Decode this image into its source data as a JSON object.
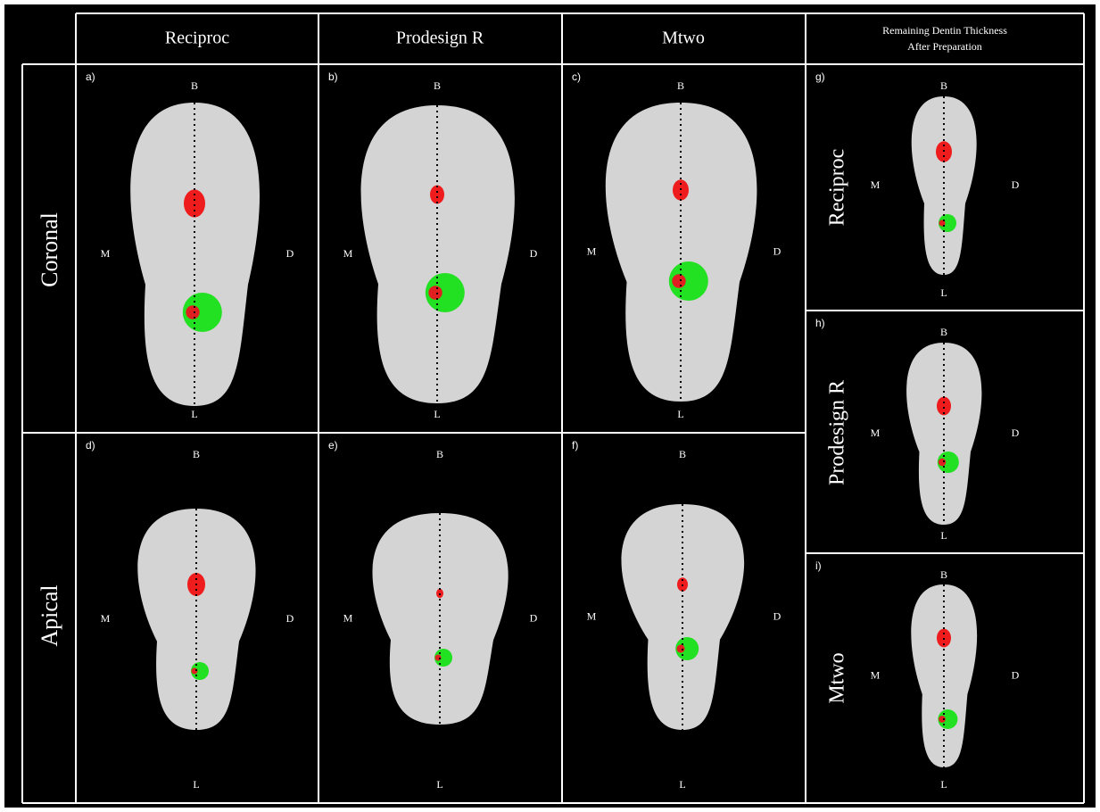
{
  "headers": [
    "Reciproc",
    "Prodesign R",
    "Mtwo"
  ],
  "rdt_header": [
    "Remaining Dentin Thickness",
    "After Preparation"
  ],
  "rows": [
    "Coronal",
    "Apical"
  ],
  "side_rows": [
    "Reciproc",
    "Prodesign R",
    "Mtwo"
  ],
  "panels": [
    {
      "label": "a)",
      "b": "B",
      "m": "M",
      "d": "D",
      "l": "L"
    },
    {
      "label": "b)",
      "b": "B",
      "m": "M",
      "d": "D",
      "l": "L"
    },
    {
      "label": "c)",
      "b": "B",
      "m": "M",
      "d": "D",
      "l": "L"
    },
    {
      "label": "d)",
      "b": "B",
      "m": "M",
      "d": "D",
      "l": "L"
    },
    {
      "label": "e)",
      "b": "B",
      "m": "M",
      "d": "D",
      "l": "L"
    },
    {
      "label": "f)",
      "b": "B",
      "m": "M",
      "d": "D",
      "l": "L"
    },
    {
      "label": "g)",
      "b": "B",
      "m": "M",
      "d": "D",
      "l": "L"
    },
    {
      "label": "h)",
      "b": "B",
      "m": "M",
      "d": "D",
      "l": "L"
    },
    {
      "label": "i)",
      "b": "B",
      "m": "M",
      "d": "D",
      "l": "L"
    }
  ]
}
